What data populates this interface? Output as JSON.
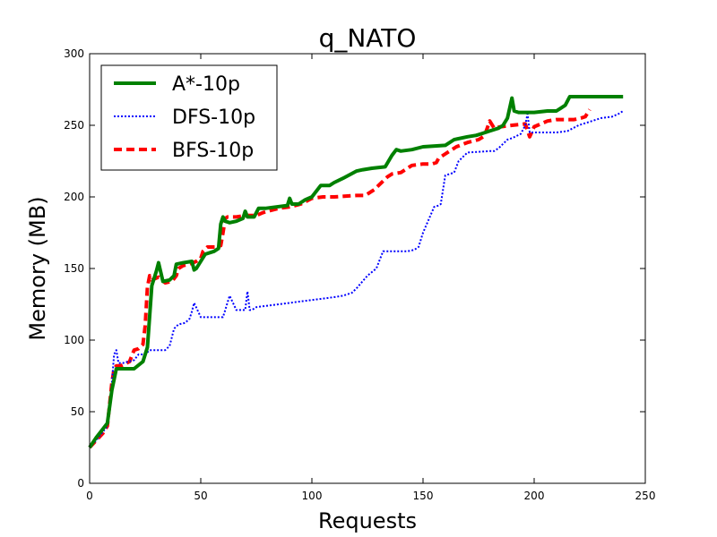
{
  "chart_data": {
    "type": "line",
    "title": "q_NATO",
    "xlabel": "Requests",
    "ylabel": "Memory (MB)",
    "xlim": [
      0,
      250
    ],
    "ylim": [
      0,
      300
    ],
    "xticks": [
      0,
      50,
      100,
      150,
      200,
      250
    ],
    "yticks": [
      0,
      50,
      100,
      150,
      200,
      250,
      300
    ],
    "grid": false,
    "legend_position": "top-left",
    "series": [
      {
        "name": "A*-10p",
        "color": "#008000",
        "style": "solid",
        "x": [
          0,
          3,
          6,
          8,
          10,
          12,
          15,
          20,
          24,
          26,
          28,
          30,
          31,
          33,
          36,
          38,
          39,
          42,
          46,
          47,
          48,
          50,
          52,
          56,
          58,
          59,
          60,
          61,
          63,
          66,
          69,
          70,
          71,
          74,
          76,
          79,
          84,
          89,
          90,
          91,
          94,
          97,
          100,
          104,
          108,
          110,
          114,
          120,
          123,
          127,
          133,
          136,
          138,
          140,
          145,
          150,
          160,
          164,
          170,
          174,
          176,
          180,
          184,
          186,
          188,
          189,
          190,
          191,
          193,
          200,
          206,
          210,
          212,
          214,
          216,
          225,
          240
        ],
        "y": [
          25,
          32,
          38,
          42,
          65,
          80,
          80,
          80,
          85,
          95,
          138,
          148,
          154,
          141,
          142,
          145,
          153,
          154,
          155,
          149,
          150,
          155,
          160,
          162,
          164,
          181,
          186,
          183,
          182,
          183,
          185,
          190,
          186,
          186,
          192,
          192,
          193,
          194,
          199,
          195,
          195,
          198,
          200,
          208,
          208,
          210,
          213,
          218,
          219,
          220,
          221,
          229,
          233,
          232,
          233,
          235,
          236,
          240,
          242,
          243,
          244,
          246,
          248,
          250,
          255,
          262,
          269,
          260,
          259,
          259,
          260,
          260,
          262,
          264,
          270,
          270,
          270
        ]
      },
      {
        "name": "DFS-10p",
        "color": "#0000ff",
        "style": "dotted",
        "x": [
          0,
          3,
          6,
          8,
          10,
          11,
          12,
          13,
          15,
          20,
          22,
          25,
          27,
          30,
          34,
          36,
          38,
          40,
          43,
          45,
          46,
          47,
          50,
          55,
          60,
          61,
          63,
          66,
          70,
          71,
          72,
          73,
          75,
          80,
          85,
          90,
          95,
          100,
          105,
          110,
          114,
          118,
          120,
          125,
          129,
          132,
          140,
          143,
          146,
          148,
          150,
          155,
          157,
          158,
          160,
          162,
          164,
          166,
          170,
          180,
          182,
          184,
          188,
          190,
          194,
          196,
          197,
          198,
          200,
          205,
          210,
          215,
          220,
          226,
          230,
          235,
          238,
          240
        ],
        "y": [
          25,
          30,
          36,
          40,
          70,
          90,
          93,
          84,
          84,
          86,
          90,
          90,
          93,
          93,
          93,
          96,
          108,
          111,
          112,
          115,
          120,
          126,
          116,
          116,
          116,
          121,
          131,
          121,
          121,
          134,
          121,
          121,
          123,
          124,
          125,
          126,
          127,
          128,
          129,
          130,
          131,
          133,
          136,
          145,
          150,
          162,
          162,
          162,
          163,
          165,
          175,
          193,
          194,
          195,
          215,
          216,
          217,
          225,
          231,
          232,
          232,
          234,
          240,
          241,
          244,
          250,
          258,
          245,
          245,
          245,
          245,
          246,
          250,
          253,
          255,
          256,
          258,
          260
        ]
      },
      {
        "name": "BFS-10p",
        "color": "#ff0000",
        "style": "dashed",
        "x": [
          0,
          3,
          6,
          8,
          10,
          11,
          12,
          14,
          18,
          20,
          22,
          24,
          25,
          26,
          27,
          28,
          31,
          34,
          37,
          39,
          40,
          42,
          45,
          48,
          50,
          51,
          53,
          57,
          59,
          60,
          61,
          62,
          66,
          70,
          75,
          78,
          80,
          85,
          90,
          95,
          100,
          105,
          110,
          120,
          124,
          126,
          128,
          130,
          134,
          136,
          140,
          145,
          150,
          154,
          156,
          157,
          160,
          165,
          170,
          175,
          177,
          178,
          180,
          182,
          185,
          190,
          196,
          198,
          200,
          206,
          210,
          218,
          221,
          223,
          225
        ],
        "y": [
          25,
          30,
          35,
          40,
          70,
          80,
          82,
          82,
          85,
          93,
          94,
          97,
          110,
          137,
          145,
          142,
          144,
          140,
          141,
          145,
          150,
          152,
          153,
          155,
          157,
          162,
          165,
          165,
          166,
          175,
          185,
          186,
          186,
          187,
          187,
          189,
          190,
          192,
          193,
          195,
          199,
          200,
          200,
          201,
          201,
          203,
          205,
          208,
          214,
          216,
          217,
          222,
          223,
          223,
          224,
          227,
          230,
          235,
          238,
          240,
          242,
          244,
          253,
          248,
          249,
          250,
          251,
          242,
          249,
          253,
          254,
          254,
          255,
          256,
          261
        ]
      }
    ]
  }
}
